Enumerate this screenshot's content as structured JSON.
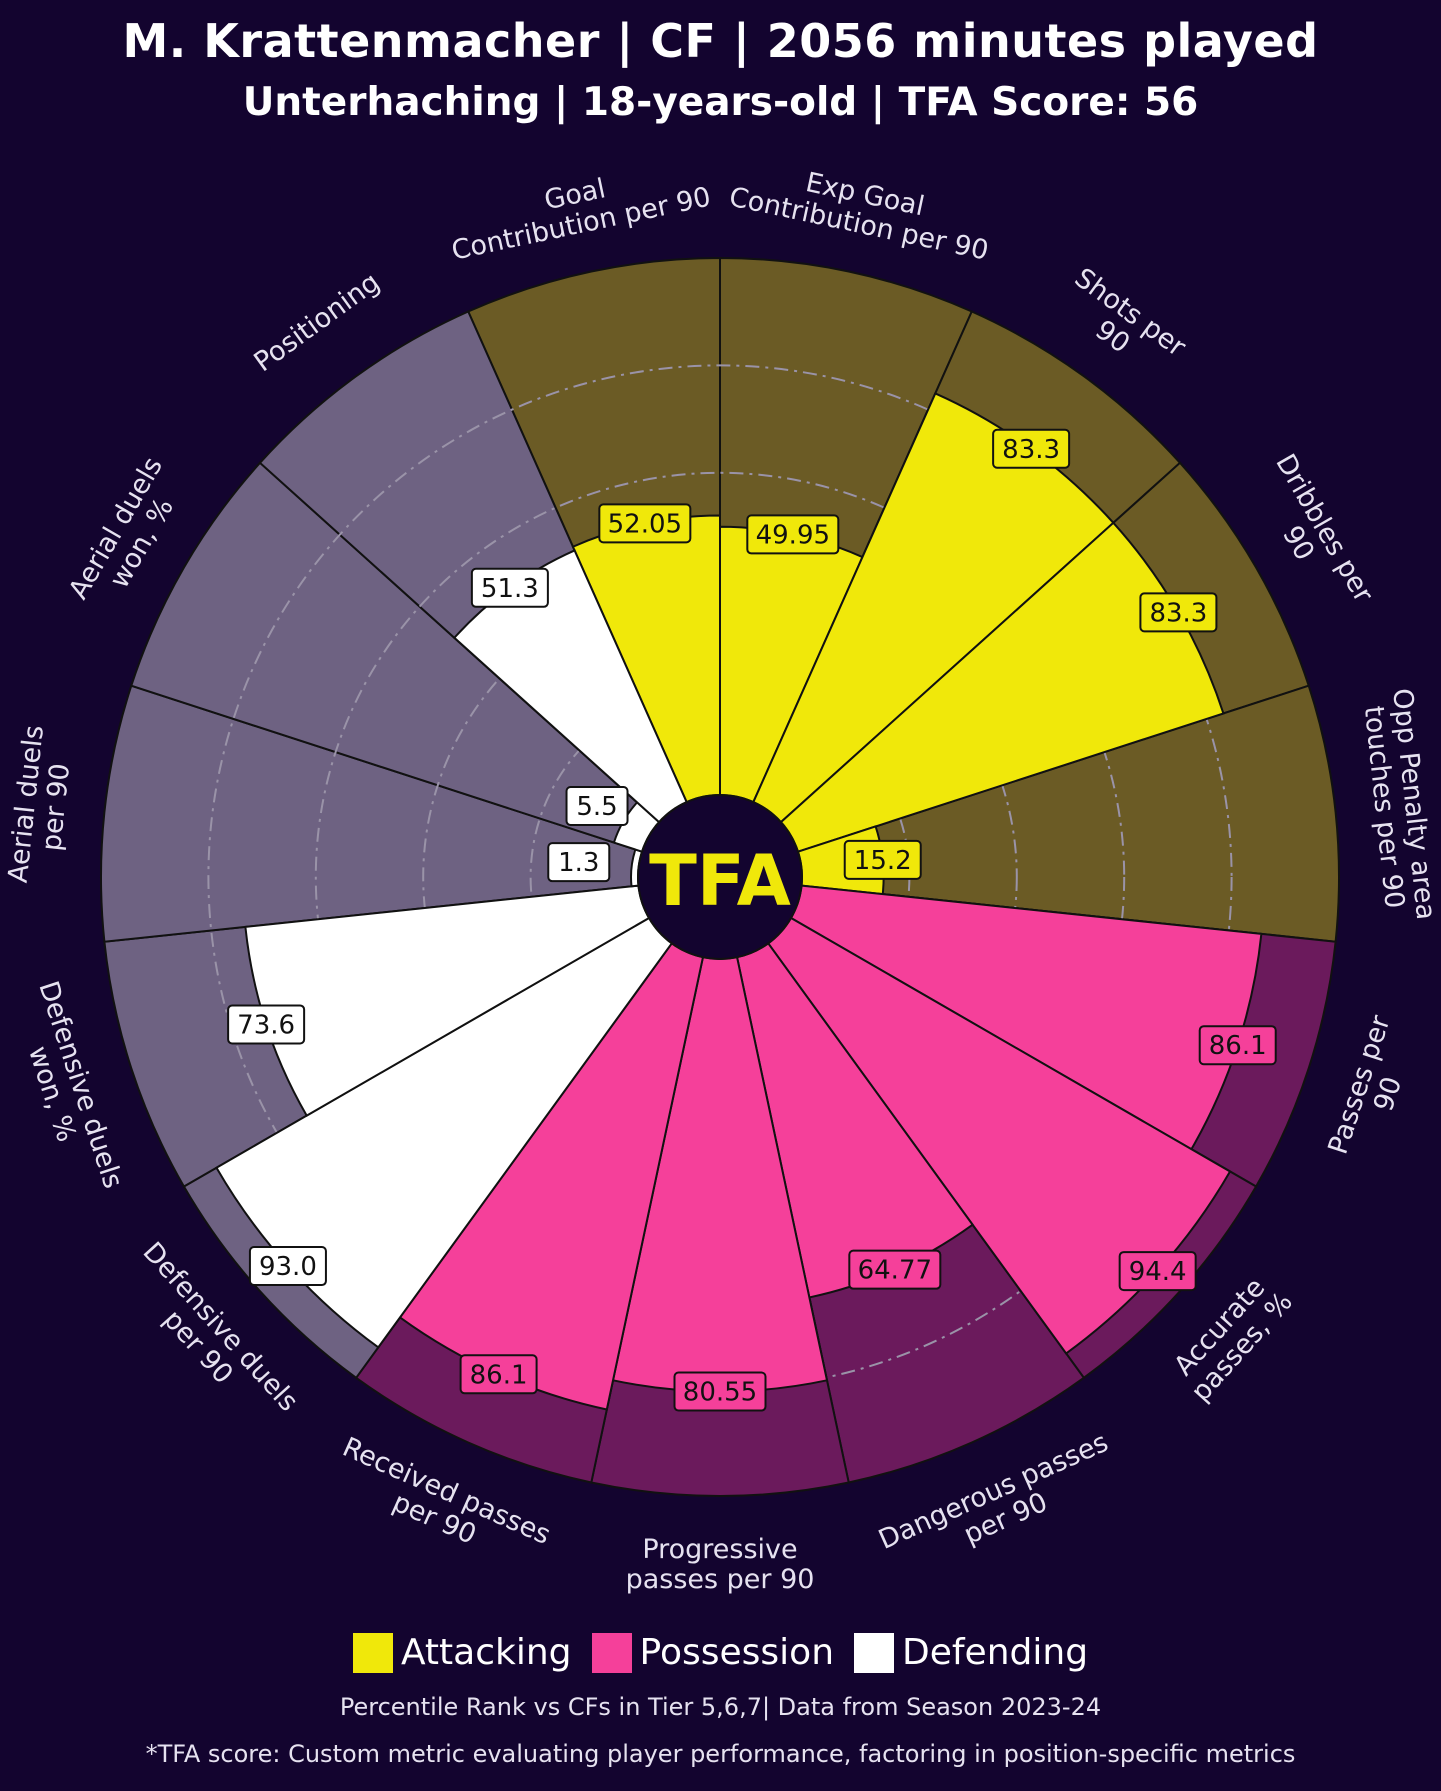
{
  "title": "M. Krattenmacher | CF | 2056 minutes played",
  "subtitle": "Unterhaching | 18-years-old | TFA Score: 56",
  "logo_text": "TFA",
  "colors": {
    "background": "#13042f",
    "attacking": "#f0e80a",
    "attacking_bg": "#6b5b25",
    "possession": "#f5409a",
    "possession_bg": "#6b1a5c",
    "defending": "#ffffff",
    "defending_bg": "#6e6282",
    "center": "#13042f",
    "logo": "#f0e80a"
  },
  "chart_data": {
    "type": "pie",
    "subtype": "polar-radar",
    "rlim": [
      0,
      100
    ],
    "grid_rings": [
      20,
      40,
      60,
      80
    ],
    "metrics": [
      {
        "label": "Goal Contribution per 90",
        "value": 52.05,
        "display": "52.05",
        "category": "Attacking"
      },
      {
        "label": "Exp Goal Contribution per 90",
        "value": 49.95,
        "display": "49.95",
        "category": "Attacking"
      },
      {
        "label": "Shots per 90",
        "value": 83.3,
        "display": "83.3",
        "category": "Attacking"
      },
      {
        "label": "Dribbles per 90",
        "value": 83.3,
        "display": "83.3",
        "category": "Attacking"
      },
      {
        "label": "Opp Penalty area touches per 90",
        "value": 15.2,
        "display": "15.2",
        "category": "Attacking"
      },
      {
        "label": "Passes per 90",
        "value": 86.1,
        "display": "86.1",
        "category": "Possession"
      },
      {
        "label": "Accurate passes, %",
        "value": 94.4,
        "display": "94.4",
        "category": "Possession"
      },
      {
        "label": "Dangerous passes per 90",
        "value": 64.77,
        "display": "64.77",
        "category": "Possession"
      },
      {
        "label": "Progressive passes per 90",
        "value": 80.55,
        "display": "80.55",
        "category": "Possession"
      },
      {
        "label": "Received passes per 90",
        "value": 86.1,
        "display": "86.1",
        "category": "Possession"
      },
      {
        "label": "Defensive duels per 90",
        "value": 93.0,
        "display": "93.0",
        "category": "Defending"
      },
      {
        "label": "Defensive duels won, %",
        "value": 73.6,
        "display": "73.6",
        "category": "Defending"
      },
      {
        "label": "Aerial duels per 90",
        "value": 1.3,
        "display": "1.3",
        "category": "Defending"
      },
      {
        "label": "Aerial duels won, %",
        "value": 5.5,
        "display": "5.5",
        "category": "Defending"
      },
      {
        "label": "Positioning",
        "value": 51.3,
        "display": "51.3",
        "category": "Defending"
      }
    ],
    "legend": [
      "Attacking",
      "Possession",
      "Defending"
    ],
    "legend_position": "bottom"
  },
  "footnote": "Percentile Rank vs CFs in Tier 5,6,7| Data from Season 2023-24",
  "footnote2": "*TFA score: Custom metric evaluating player performance, factoring in position-specific metrics"
}
